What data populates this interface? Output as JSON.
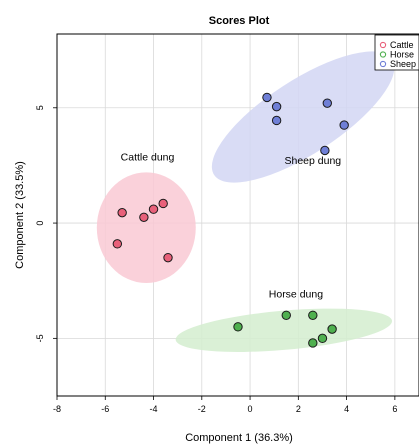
{
  "chart_data": {
    "type": "scatter",
    "title": "Scores Plot",
    "xlabel": "Component 1 (36.3%)",
    "ylabel": "Component 2 (33.5%)",
    "xlim": [
      -8,
      7
    ],
    "ylim": [
      -7.5,
      8.2
    ],
    "xticks": [
      -8,
      -6,
      -4,
      -2,
      0,
      2,
      4,
      6
    ],
    "yticks": [
      -5,
      0,
      5
    ],
    "grid": true,
    "legend_position": "top-right",
    "legend": [
      "Cattle",
      "Horse",
      "Sheep"
    ],
    "series": [
      {
        "name": "Cattle",
        "color": "#e8607a",
        "fill": "#f9c9d4",
        "points": [
          [
            -5.3,
            0.45
          ],
          [
            -4.4,
            0.25
          ],
          [
            -4.0,
            0.6
          ],
          [
            -3.6,
            0.85
          ],
          [
            -5.5,
            -0.9
          ],
          [
            -3.4,
            -1.5
          ]
        ],
        "ellipse": {
          "cx": -4.3,
          "cy": -0.2,
          "rx": 2.05,
          "ry": 2.4,
          "angle": 0
        },
        "annotation": "Cattle dung"
      },
      {
        "name": "Horse",
        "color": "#4fb04f",
        "fill": "#d3edcf",
        "points": [
          [
            -0.5,
            -4.5
          ],
          [
            1.5,
            -4.0
          ],
          [
            2.6,
            -4.0
          ],
          [
            3.4,
            -4.6
          ],
          [
            3.0,
            -5.0
          ],
          [
            2.6,
            -5.2
          ]
        ],
        "ellipse": {
          "cx": 1.4,
          "cy": -4.65,
          "rx": 4.5,
          "ry": 0.85,
          "angle": -5
        },
        "annotation": "Horse dung"
      },
      {
        "name": "Sheep",
        "color": "#6f7fd6",
        "fill": "#d2d6f3",
        "points": [
          [
            0.7,
            5.45
          ],
          [
            1.1,
            5.05
          ],
          [
            1.1,
            4.45
          ],
          [
            3.2,
            5.2
          ],
          [
            3.9,
            4.25
          ],
          [
            3.1,
            3.15
          ]
        ],
        "ellipse": {
          "cx": 2.2,
          "cy": 4.6,
          "rx": 4.4,
          "ry": 1.6,
          "angle": -33
        },
        "annotation": "Sheep dung"
      }
    ]
  },
  "colors": {
    "grid": "#d9d9d9",
    "frame": "#000000",
    "point_stroke": "#1a1a1a"
  }
}
